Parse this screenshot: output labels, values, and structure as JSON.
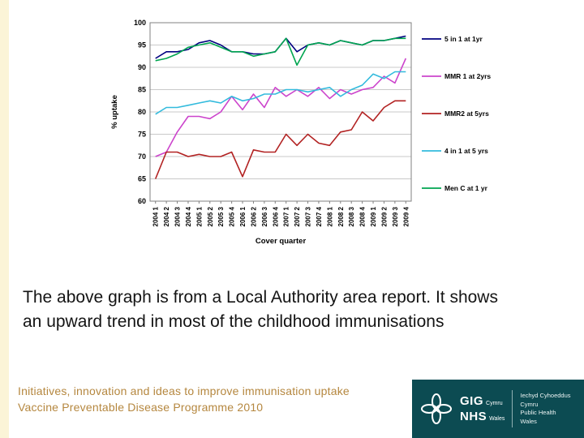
{
  "slide": {
    "body_line1": "The above graph is from a Local Authority area report. It shows",
    "body_line2": "an upward trend in most of the childhood immunisations",
    "footer_line1": "Initiatives, innovation and ideas to improve immunisation uptake",
    "footer_line2": "Vaccine Preventable Disease Programme 2010",
    "footer_color": "#b5873f",
    "accent_strip_color": "#fbf4d7"
  },
  "logo": {
    "bg_color": "#0c4b52",
    "brand_top_main": "GIG",
    "brand_top_sub": "Cymru",
    "brand_bottom_main": "NHS",
    "brand_bottom_sub": "Wales",
    "org_line1": "Iechyd Cyhoeddus",
    "org_line2": "Cymru",
    "org_line3": "Public Health",
    "org_line4": "Wales"
  },
  "chart_data": {
    "type": "line",
    "title": "",
    "xlabel": "Cover quarter",
    "ylabel": "% uptake",
    "ylim": [
      60,
      100
    ],
    "ytick_step": 5,
    "grid": true,
    "legend_position": "right",
    "categories": [
      "2004 1",
      "2004 2",
      "2004 3",
      "2004 4",
      "2005 1",
      "2005 2",
      "2005 3",
      "2005 4",
      "2006 1",
      "2006 2",
      "2006 3",
      "2006 4",
      "2007 1",
      "2007 2",
      "2007 3",
      "2007 4",
      "2008 1",
      "2008 2",
      "2008 3",
      "2008 4",
      "2009 1",
      "2009 2",
      "2009 3",
      "2009 4"
    ],
    "series": [
      {
        "name": "5 in 1 at 1yr",
        "color": "#000080",
        "values": [
          92,
          93.5,
          93.5,
          94,
          95.5,
          96,
          95,
          93.5,
          93.5,
          93,
          93,
          93.5,
          96.5,
          93.5,
          95,
          95.5,
          95,
          96,
          95.5,
          95,
          96,
          96,
          96.5,
          97
        ]
      },
      {
        "name": "MMR 1 at 2yrs",
        "color": "#cc44cc",
        "values": [
          70,
          71,
          75.5,
          79,
          79,
          78.5,
          80,
          83.5,
          80.5,
          84,
          81,
          85.5,
          83.5,
          85,
          83.5,
          85.5,
          83,
          85,
          84,
          85,
          85.5,
          88,
          86.5,
          92
        ]
      },
      {
        "name": "MMR2 at 5yrs",
        "color": "#b22222",
        "values": [
          65,
          71,
          71,
          70,
          70.5,
          70,
          70,
          71,
          65.5,
          71.5,
          71,
          71,
          75,
          72.5,
          75,
          73,
          72.5,
          75.5,
          76,
          80,
          78,
          81,
          82.5,
          82.5
        ]
      },
      {
        "name": "4 in 1 at 5 yrs",
        "color": "#33bbdd",
        "values": [
          79.5,
          81,
          81,
          81.5,
          82,
          82.5,
          82,
          83.5,
          82.5,
          83,
          84,
          84,
          85,
          85,
          84.5,
          85,
          85.5,
          83.5,
          85,
          86,
          88.5,
          87.5,
          89,
          89
        ]
      },
      {
        "name": "Men C at 1 yr",
        "color": "#00a550",
        "values": [
          91.5,
          92,
          93,
          94.5,
          95,
          95.5,
          94.5,
          93.5,
          93.5,
          92.5,
          93,
          93.5,
          96.5,
          90.5,
          95,
          95.5,
          95,
          96,
          95.5,
          95,
          96,
          96,
          96.5,
          96.5
        ]
      }
    ]
  }
}
